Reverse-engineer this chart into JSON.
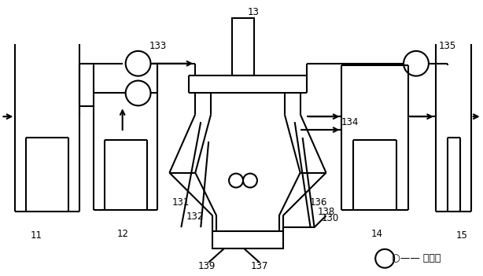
{
  "bg_color": "#ffffff",
  "line_color": "#000000",
  "lw": 1.5,
  "label_fontsize": 8.5,
  "legend_fontsize": 9,
  "figsize": [
    6.14,
    3.51
  ],
  "dpi": 100
}
